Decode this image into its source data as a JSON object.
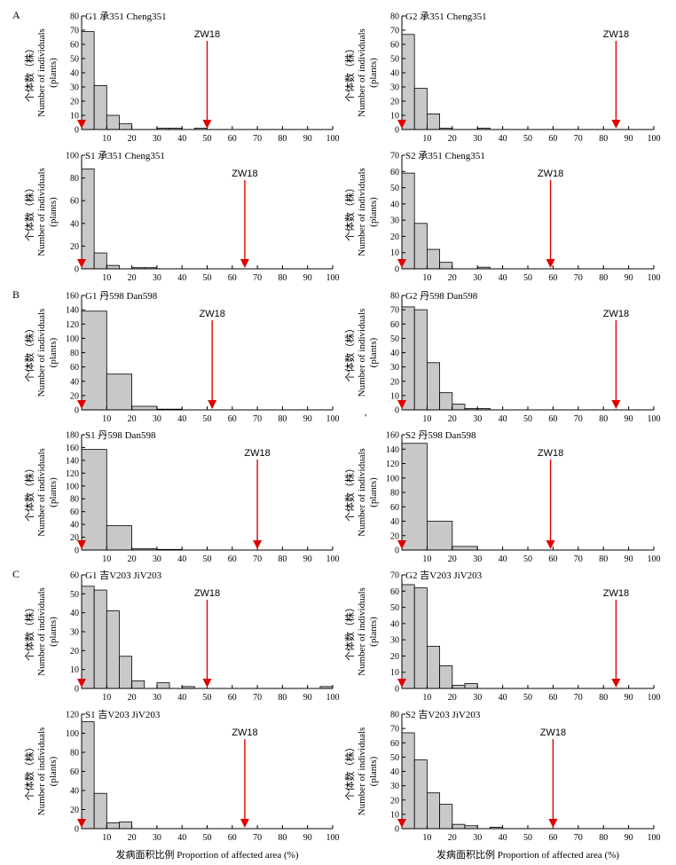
{
  "figure": {
    "xlabel": "发病面积比例 Proportion of affected area (%)",
    "ylabel_lines": [
      "个体数（株）",
      "Number of individuals",
      "(plants)"
    ],
    "marker_label": "ZW18",
    "bar_color": "#c8c8c8",
    "arrow_color": "#e00000",
    "stray_mark": ","
  },
  "chart_data": [
    {
      "type": "bar",
      "section": "A",
      "title": "G1  承351 Cheng351",
      "xlim": [
        0,
        100
      ],
      "ylim": [
        0,
        80
      ],
      "yticks": [
        0,
        10,
        20,
        30,
        40,
        50,
        60,
        70,
        80
      ],
      "xticks": [
        10,
        20,
        30,
        40,
        50,
        60,
        70,
        80,
        90,
        100
      ],
      "bin_width": 5,
      "x": [
        5,
        10,
        15,
        20,
        25,
        30,
        35,
        40,
        45,
        50
      ],
      "values": [
        69,
        31,
        10,
        4,
        0,
        0,
        1,
        1,
        0,
        1
      ],
      "markers": [
        {
          "label": "ZW18",
          "x": 50
        },
        {
          "label": "",
          "x": 0
        }
      ]
    },
    {
      "type": "bar",
      "title": "G2  承351 Cheng351",
      "xlim": [
        0,
        100
      ],
      "ylim": [
        0,
        80
      ],
      "yticks": [
        0,
        10,
        20,
        30,
        40,
        50,
        60,
        70,
        80
      ],
      "xticks": [
        10,
        20,
        30,
        40,
        50,
        60,
        70,
        80,
        90,
        100
      ],
      "bin_width": 5,
      "x": [
        5,
        10,
        15,
        20,
        25,
        30,
        35
      ],
      "values": [
        67,
        29,
        11,
        1,
        0,
        0,
        1
      ],
      "markers": [
        {
          "label": "ZW18",
          "x": 85
        },
        {
          "label": "",
          "x": 0
        }
      ]
    },
    {
      "type": "bar",
      "title": "S1  承351 Cheng351",
      "xlim": [
        0,
        100
      ],
      "ylim": [
        0,
        100
      ],
      "yticks": [
        0,
        20,
        40,
        60,
        80,
        100
      ],
      "xticks": [
        10,
        20,
        30,
        40,
        50,
        60,
        70,
        80,
        90,
        100
      ],
      "bin_width": 5,
      "x": [
        5,
        10,
        15,
        20,
        25,
        30
      ],
      "values": [
        88,
        14,
        3,
        0,
        1,
        1
      ],
      "markers": [
        {
          "label": "ZW18",
          "x": 65
        },
        {
          "label": "",
          "x": 0
        }
      ]
    },
    {
      "type": "bar",
      "title": "S2  承351 Cheng351",
      "xlim": [
        0,
        100
      ],
      "ylim": [
        0,
        70
      ],
      "yticks": [
        0,
        10,
        20,
        30,
        40,
        50,
        60,
        70
      ],
      "xticks": [
        10,
        20,
        30,
        40,
        50,
        60,
        70,
        80,
        90,
        100
      ],
      "bin_width": 5,
      "x": [
        5,
        10,
        15,
        20,
        25,
        30,
        35
      ],
      "values": [
        59,
        28,
        12,
        4,
        0,
        0,
        1
      ],
      "markers": [
        {
          "label": "ZW18",
          "x": 59
        },
        {
          "label": "",
          "x": 0
        }
      ]
    },
    {
      "type": "bar",
      "section": "B",
      "title": "G1  丹598 Dan598",
      "xlim": [
        0,
        100
      ],
      "ylim": [
        0,
        160
      ],
      "yticks": [
        0,
        20,
        40,
        60,
        80,
        100,
        120,
        140,
        160
      ],
      "xticks": [
        10,
        20,
        30,
        40,
        50,
        60,
        70,
        80,
        90,
        100
      ],
      "bin_width": 10,
      "x": [
        10,
        20,
        30,
        40
      ],
      "values": [
        138,
        50,
        5,
        1
      ],
      "markers": [
        {
          "label": "ZW18",
          "x": 52
        },
        {
          "label": "",
          "x": 0
        }
      ]
    },
    {
      "type": "bar",
      "title": "G2  丹598 Dan598",
      "xlim": [
        0,
        100
      ],
      "ylim": [
        0,
        80
      ],
      "yticks": [
        0,
        10,
        20,
        30,
        40,
        50,
        60,
        70,
        80
      ],
      "xticks": [
        10,
        20,
        30,
        40,
        50,
        60,
        70,
        80,
        90,
        100
      ],
      "bin_width": 5,
      "x": [
        5,
        10,
        15,
        20,
        25,
        30,
        35
      ],
      "values": [
        72,
        70,
        33,
        12,
        4,
        1,
        1
      ],
      "markers": [
        {
          "label": "ZW18",
          "x": 85
        },
        {
          "label": "",
          "x": 0
        }
      ]
    },
    {
      "type": "bar",
      "title": "S1  丹598 Dan598",
      "xlim": [
        0,
        100
      ],
      "ylim": [
        0,
        180
      ],
      "yticks": [
        0,
        20,
        40,
        60,
        80,
        100,
        120,
        140,
        160,
        180
      ],
      "xticks": [
        10,
        20,
        30,
        40,
        50,
        60,
        70,
        80,
        90,
        100
      ],
      "bin_width": 10,
      "x": [
        10,
        20,
        30,
        40
      ],
      "values": [
        157,
        38,
        2,
        1
      ],
      "markers": [
        {
          "label": "ZW18",
          "x": 70
        },
        {
          "label": "",
          "x": 0
        }
      ]
    },
    {
      "type": "bar",
      "title": "S2  丹598 Dan598",
      "xlim": [
        0,
        100
      ],
      "ylim": [
        0,
        160
      ],
      "yticks": [
        0,
        20,
        40,
        60,
        80,
        100,
        120,
        140,
        160
      ],
      "xticks": [
        10,
        20,
        30,
        40,
        50,
        60,
        70,
        80,
        90,
        100
      ],
      "bin_width": 10,
      "x": [
        10,
        20,
        30
      ],
      "values": [
        148,
        40,
        5
      ],
      "markers": [
        {
          "label": "ZW18",
          "x": 59
        },
        {
          "label": "",
          "x": 0
        }
      ]
    },
    {
      "type": "bar",
      "section": "C",
      "title": "G1  吉V203 JiV203",
      "xlim": [
        0,
        100
      ],
      "ylim": [
        0,
        60
      ],
      "yticks": [
        0,
        10,
        20,
        30,
        40,
        50,
        60
      ],
      "xticks": [
        10,
        20,
        30,
        40,
        50,
        60,
        70,
        80,
        90,
        100
      ],
      "bin_width": 5,
      "x": [
        5,
        10,
        15,
        20,
        25,
        30,
        35,
        40,
        45,
        50,
        55,
        60,
        65,
        70,
        75,
        80,
        85,
        90,
        95,
        100
      ],
      "values": [
        54,
        52,
        41,
        17,
        4,
        0,
        3,
        0,
        1,
        0,
        0,
        0,
        0,
        0,
        0,
        0,
        0,
        0,
        0,
        1
      ],
      "markers": [
        {
          "label": "ZW18",
          "x": 50
        },
        {
          "label": "",
          "x": 0
        }
      ]
    },
    {
      "type": "bar",
      "title": "G2  吉V203 JiV203",
      "xlim": [
        0,
        100
      ],
      "ylim": [
        0,
        70
      ],
      "yticks": [
        0,
        10,
        20,
        30,
        40,
        50,
        60,
        70
      ],
      "xticks": [
        10,
        20,
        30,
        40,
        50,
        60,
        70,
        80,
        90,
        100
      ],
      "bin_width": 5,
      "x": [
        5,
        10,
        15,
        20,
        25,
        30
      ],
      "values": [
        64,
        62,
        26,
        14,
        2,
        3
      ],
      "markers": [
        {
          "label": "ZW18",
          "x": 85
        },
        {
          "label": "",
          "x": 0
        }
      ]
    },
    {
      "type": "bar",
      "title": "S1  吉V203 JiV203",
      "xlim": [
        0,
        100
      ],
      "ylim": [
        0,
        120
      ],
      "yticks": [
        0,
        20,
        40,
        60,
        80,
        100,
        120
      ],
      "xticks": [
        10,
        20,
        30,
        40,
        50,
        60,
        70,
        80,
        90,
        100
      ],
      "bin_width": 5,
      "x": [
        5,
        10,
        15,
        20
      ],
      "values": [
        112,
        37,
        6,
        7
      ],
      "markers": [
        {
          "label": "ZW18",
          "x": 65
        },
        {
          "label": "",
          "x": 0
        }
      ]
    },
    {
      "type": "bar",
      "title": "S2  吉V203 JiV203",
      "xlim": [
        0,
        100
      ],
      "ylim": [
        0,
        80
      ],
      "yticks": [
        0,
        10,
        20,
        30,
        40,
        50,
        60,
        70,
        80
      ],
      "xticks": [
        10,
        20,
        30,
        40,
        50,
        60,
        70,
        80,
        90,
        100
      ],
      "bin_width": 5,
      "x": [
        5,
        10,
        15,
        20,
        25,
        30,
        35,
        40
      ],
      "values": [
        67,
        48,
        25,
        17,
        3,
        2,
        0,
        1
      ],
      "markers": [
        {
          "label": "ZW18",
          "x": 60
        },
        {
          "label": "",
          "x": 0
        }
      ]
    }
  ]
}
